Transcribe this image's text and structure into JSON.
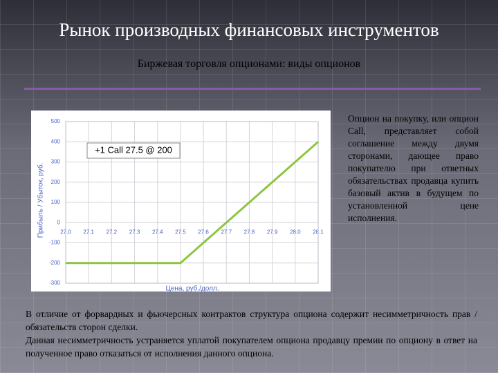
{
  "slide": {
    "title": "Рынок производных финансовых инструментов",
    "subtitle": "Биржевая торговля опционами: виды опционов",
    "side_text": "Опцион на покупку, или опцион Call, представляет собой соглашение между двумя сторонами, дающее право покупателю при ответных обязательствах продавца купить базовый актив в будущем по установленной цене исполнения.",
    "paragraphs": [
      "В отличие от форвардных и фьючерсных контрактов структура опциона содержит несимметричность прав / обязательств сторон сделки.",
      "Данная несимметричность устраняется уплатой покупателем опциона продавцу премии по опциону в ответ на полученное право отказаться от исполнения данного опциона."
    ]
  },
  "chart_data": {
    "type": "line",
    "x": [
      27.0,
      27.5,
      28.1
    ],
    "values": [
      -200,
      -200,
      400
    ],
    "color": "#8cc63f",
    "annotation": "+1 Call 27.5 @ 200",
    "xlabel": "Цена, руб./долл.",
    "ylabel": "Прибыль / Убыток, руб.",
    "xlim": [
      27.0,
      28.1
    ],
    "xticks": [
      {
        "value": 27.0,
        "label": "27.0"
      },
      27.1,
      27.2,
      27.3,
      27.4,
      27.5,
      27.6,
      27.7,
      27.8,
      27.9,
      {
        "value": 28.0,
        "label": "28.0"
      },
      28.1
    ],
    "ylim": [
      -300,
      500
    ],
    "yticks": [
      -300,
      -200,
      -100,
      0,
      100,
      200,
      300,
      400,
      500
    ],
    "grid": true
  }
}
